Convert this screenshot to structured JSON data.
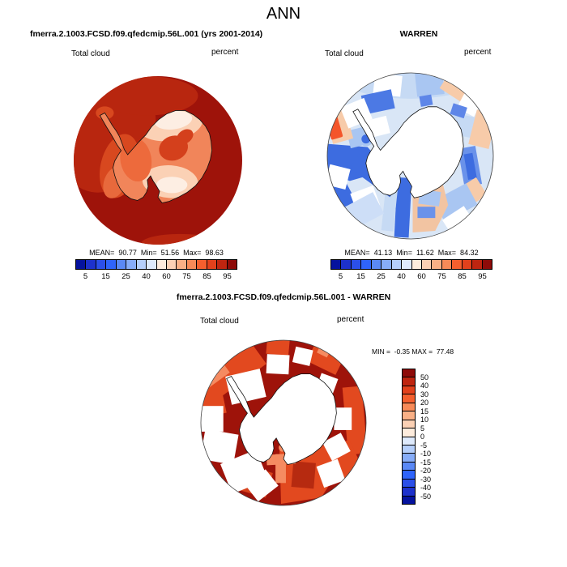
{
  "page": {
    "title": "ANN"
  },
  "panels": {
    "model": {
      "title": "fmerra.2.1003.FCSD.f09.qfedcmip.56L.001 (yrs 2001-2014)",
      "field_label": "Total cloud",
      "units_label": "percent",
      "stats_text": "MEAN=  90.77  Min=  51.56  Max=  98.63"
    },
    "obs": {
      "title": "WARREN",
      "field_label": "Total cloud",
      "units_label": "percent",
      "stats_text": "MEAN=  41.13  Min=  11.62  Max=  84.32"
    },
    "diff": {
      "title": "fmerra.2.1003.FCSD.f09.qfedcmip.56L.001 - WARREN",
      "field_label": "Total cloud",
      "units_label": "percent",
      "minmax_text": "MIN =  -0.35 MAX =  77.48",
      "colorbar_labels": [
        "50",
        "40",
        "30",
        "20",
        "15",
        "10",
        "5",
        "0",
        "-5",
        "-10",
        "-15",
        "-20",
        "-30",
        "-40",
        "-50"
      ]
    }
  },
  "colorbar": {
    "ticks": [
      "5",
      "15",
      "25",
      "40",
      "60",
      "75",
      "85",
      "95"
    ],
    "palette": [
      "#05129E",
      "#1D31CC",
      "#2B4FE9",
      "#2F64FB",
      "#5A89F6",
      "#87ADF9",
      "#B5CFFB",
      "#DEEAFC",
      "#FDECDD",
      "#FBD1B5",
      "#F9B086",
      "#F78A58",
      "#F45F2E",
      "#E2411C",
      "#BF2510",
      "#8E0B09"
    ]
  },
  "map_colors": {
    "ocean_high_cloud": "#9E130A",
    "no_data": "#FFFFFF",
    "coastline": "#111111"
  },
  "chart_data": [
    {
      "type": "heatmap",
      "projection": "south-polar-stereographic",
      "season": "ANN",
      "title": "fmerra.2.1003.FCSD.f09.qfedcmip.56L.001 (yrs 2001-2014)",
      "variable": "Total cloud",
      "units": "percent",
      "stats": {
        "mean": 90.77,
        "min": 51.56,
        "max": 98.63
      },
      "levels": [
        5,
        10,
        15,
        20,
        25,
        30,
        40,
        50,
        60,
        70,
        75,
        80,
        85,
        90,
        95
      ],
      "labeled_levels": [
        5,
        15,
        25,
        40,
        60,
        75,
        85,
        95
      ],
      "legend_position": "bottom",
      "palette_low_to_high": [
        "#05129E",
        "#1D31CC",
        "#2B4FE9",
        "#2F64FB",
        "#5A89F6",
        "#87ADF9",
        "#B5CFFB",
        "#DEEAFC",
        "#FDECDD",
        "#FBD1B5",
        "#F9B086",
        "#F78A58",
        "#F45F2E",
        "#E2411C",
        "#BF2510",
        "#8E0B09"
      ]
    },
    {
      "type": "heatmap",
      "projection": "south-polar-stereographic",
      "season": "ANN",
      "title": "WARREN",
      "variable": "Total cloud",
      "units": "percent",
      "stats": {
        "mean": 41.13,
        "min": 11.62,
        "max": 84.32
      },
      "levels": [
        5,
        10,
        15,
        20,
        25,
        30,
        40,
        50,
        60,
        70,
        75,
        80,
        85,
        90,
        95
      ],
      "labeled_levels": [
        5,
        15,
        25,
        40,
        60,
        75,
        85,
        95
      ],
      "legend_position": "bottom"
    },
    {
      "type": "heatmap",
      "projection": "south-polar-stereographic",
      "season": "ANN",
      "title": "fmerra.2.1003.FCSD.f09.qfedcmip.56L.001 - WARREN",
      "variable": "Total cloud difference",
      "units": "percent",
      "stats": {
        "min": -0.35,
        "max": 77.48
      },
      "levels": [
        -50,
        -40,
        -30,
        -20,
        -15,
        -10,
        -5,
        0,
        5,
        10,
        15,
        20,
        30,
        40,
        50
      ],
      "legend_position": "right"
    }
  ]
}
